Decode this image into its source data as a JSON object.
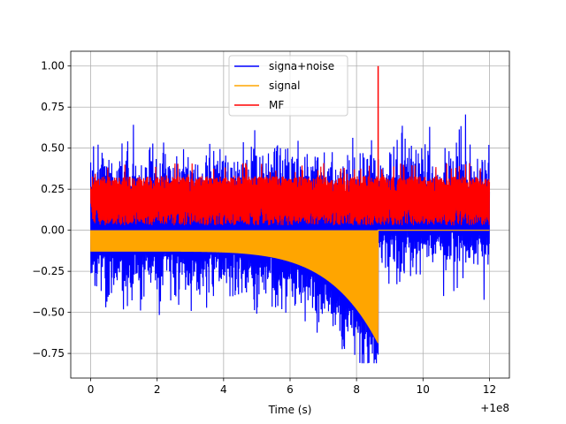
{
  "chart_data": {
    "type": "line",
    "xlabel": "Time (s)",
    "ylabel": "",
    "x_offset_label": "+1e8",
    "xlim": [
      -0.6,
      12.6
    ],
    "ylim": [
      -0.9,
      1.09
    ],
    "xticks": [
      0,
      2,
      4,
      6,
      8,
      10,
      12
    ],
    "xtick_labels": [
      "0",
      "2",
      "4",
      "6",
      "8",
      "10",
      "12"
    ],
    "yticks": [
      -0.75,
      -0.5,
      -0.25,
      0.0,
      0.25,
      0.5,
      0.75,
      1.0
    ],
    "ytick_labels": [
      "−0.75",
      "−0.50",
      "−0.25",
      "0.00",
      "0.25",
      "0.50",
      "0.75",
      "1.00"
    ],
    "grid": true,
    "legend_position": "top-center",
    "x_range": [
      0,
      12
    ],
    "series": [
      {
        "name": "signa+noise",
        "color": "#0000ff",
        "description_values": {
          "typical_min": -0.5,
          "typical_max": 0.5,
          "peak_max": 0.97,
          "peak_min": -0.81,
          "envelope_low_after_chirp_end": -0.0,
          "chirp_end_x": 8.65
        }
      },
      {
        "name": "signal",
        "color": "#ffa500",
        "description_values": {
          "upper": 0.0,
          "lower_at_start": -0.13,
          "lower_at_end": -0.69,
          "chirp_end_x": 8.65
        }
      },
      {
        "name": "MF",
        "color": "#ff0000",
        "description_values": {
          "typical_min": 0.03,
          "typical_max": 0.33,
          "spike_x": 8.65,
          "spike_y": 1.0
        }
      }
    ]
  }
}
